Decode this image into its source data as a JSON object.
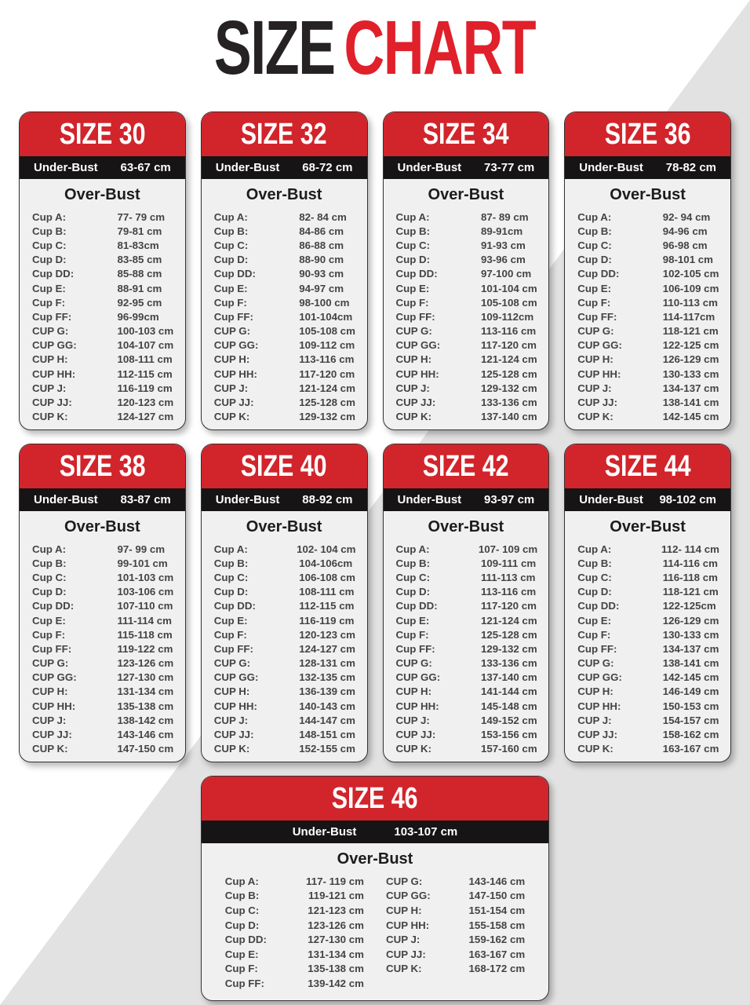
{
  "title": {
    "part1": "SIZE",
    "part2": "CHART"
  },
  "colors": {
    "title_dark": "#262223",
    "title_red": "#e0202a",
    "header_red": "#d2242b",
    "bar_black": "#161415",
    "card_body_gray": "#f1f0f0",
    "background_gray": "#e3e2e2",
    "row_text": "#454345"
  },
  "labels": {
    "under_bust": "Under-Bust",
    "over_bust": "Over-Bust"
  },
  "row_labels": [
    "Cup A:",
    "Cup B:",
    "Cup C:",
    "Cup D:",
    "Cup DD:",
    "Cup E:",
    "Cup F:",
    "Cup FF:",
    "CUP G:",
    "CUP GG:",
    "CUP H:",
    "CUP HH:",
    "CUP J:",
    "CUP JJ:",
    "CUP K:"
  ],
  "cards": [
    {
      "size_label": "SIZE 30",
      "under_bust": "63-67 cm",
      "wide": false,
      "values": [
        "77- 79 cm",
        "79-81 cm",
        "81-83cm",
        "83-85 cm",
        "85-88 cm",
        "88-91 cm",
        "92-95 cm",
        "96-99cm",
        "100-103 cm",
        "104-107 cm",
        "108-111 cm",
        "112-115 cm",
        "116-119 cm",
        "120-123 cm",
        "124-127 cm"
      ]
    },
    {
      "size_label": "SIZE 32",
      "under_bust": "68-72 cm",
      "wide": false,
      "values": [
        "82- 84 cm",
        "84-86 cm",
        "86-88 cm",
        "88-90 cm",
        "90-93 cm",
        "94-97 cm",
        "98-100 cm",
        "101-104cm",
        "105-108 cm",
        "109-112 cm",
        "113-116 cm",
        "117-120 cm",
        "121-124 cm",
        "125-128 cm",
        "129-132 cm"
      ]
    },
    {
      "size_label": "SIZE 34",
      "under_bust": "73-77 cm",
      "wide": false,
      "values": [
        "87- 89 cm",
        "89-91cm",
        "91-93 cm",
        "93-96 cm",
        "97-100 cm",
        "101-104 cm",
        "105-108 cm",
        "109-112cm",
        "113-116 cm",
        "117-120 cm",
        "121-124 cm",
        "125-128 cm",
        "129-132 cm",
        "133-136 cm",
        "137-140 cm"
      ]
    },
    {
      "size_label": "SIZE 36",
      "under_bust": "78-82 cm",
      "wide": false,
      "values": [
        "92- 94 cm",
        "94-96 cm",
        "96-98 cm",
        "98-101 cm",
        "102-105 cm",
        "106-109 cm",
        "110-113 cm",
        "114-117cm",
        "118-121 cm",
        "122-125 cm",
        "126-129 cm",
        "130-133 cm",
        "134-137 cm",
        "138-141 cm",
        "142-145 cm"
      ]
    },
    {
      "size_label": "SIZE 38",
      "under_bust": "83-87 cm",
      "wide": false,
      "values": [
        "97- 99 cm",
        "99-101 cm",
        "101-103 cm",
        "103-106 cm",
        "107-110 cm",
        "111-114 cm",
        "115-118 cm",
        "119-122 cm",
        "123-126 cm",
        "127-130 cm",
        "131-134 cm",
        "135-138 cm",
        "138-142 cm",
        "143-146 cm",
        "147-150 cm"
      ]
    },
    {
      "size_label": "SIZE 40",
      "under_bust": "88-92 cm",
      "wide": false,
      "values": [
        "102- 104 cm",
        "104-106cm",
        "106-108 cm",
        "108-111 cm",
        "112-115 cm",
        "116-119 cm",
        "120-123 cm",
        "124-127 cm",
        "128-131 cm",
        "132-135 cm",
        "136-139 cm",
        "140-143 cm",
        "144-147 cm",
        "148-151 cm",
        "152-155 cm"
      ]
    },
    {
      "size_label": "SIZE 42",
      "under_bust": "93-97 cm",
      "wide": false,
      "values": [
        "107- 109 cm",
        "109-111 cm",
        "111-113 cm",
        "113-116 cm",
        "117-120 cm",
        "121-124 cm",
        "125-128 cm",
        "129-132 cm",
        "133-136 cm",
        "137-140 cm",
        "141-144 cm",
        "145-148 cm",
        "149-152 cm",
        "153-156 cm",
        "157-160 cm"
      ]
    },
    {
      "size_label": "SIZE 44",
      "under_bust": "98-102 cm",
      "wide": false,
      "values": [
        "112- 114 cm",
        "114-116 cm",
        "116-118 cm",
        "118-121 cm",
        "122-125cm",
        "126-129 cm",
        "130-133 cm",
        "134-137 cm",
        "138-141 cm",
        "142-145 cm",
        "146-149 cm",
        "150-153 cm",
        "154-157 cm",
        "158-162 cm",
        "163-167 cm"
      ]
    },
    {
      "size_label": "SIZE 46",
      "under_bust": "103-107 cm",
      "wide": true,
      "values": [
        "117- 119 cm",
        "119-121 cm",
        "121-123 cm",
        "123-126 cm",
        "127-130 cm",
        "131-134 cm",
        "135-138 cm",
        "139-142 cm",
        "143-146 cm",
        "147-150 cm",
        "151-154 cm",
        "155-158 cm",
        "159-162 cm",
        "163-167 cm",
        "168-172 cm"
      ]
    }
  ]
}
